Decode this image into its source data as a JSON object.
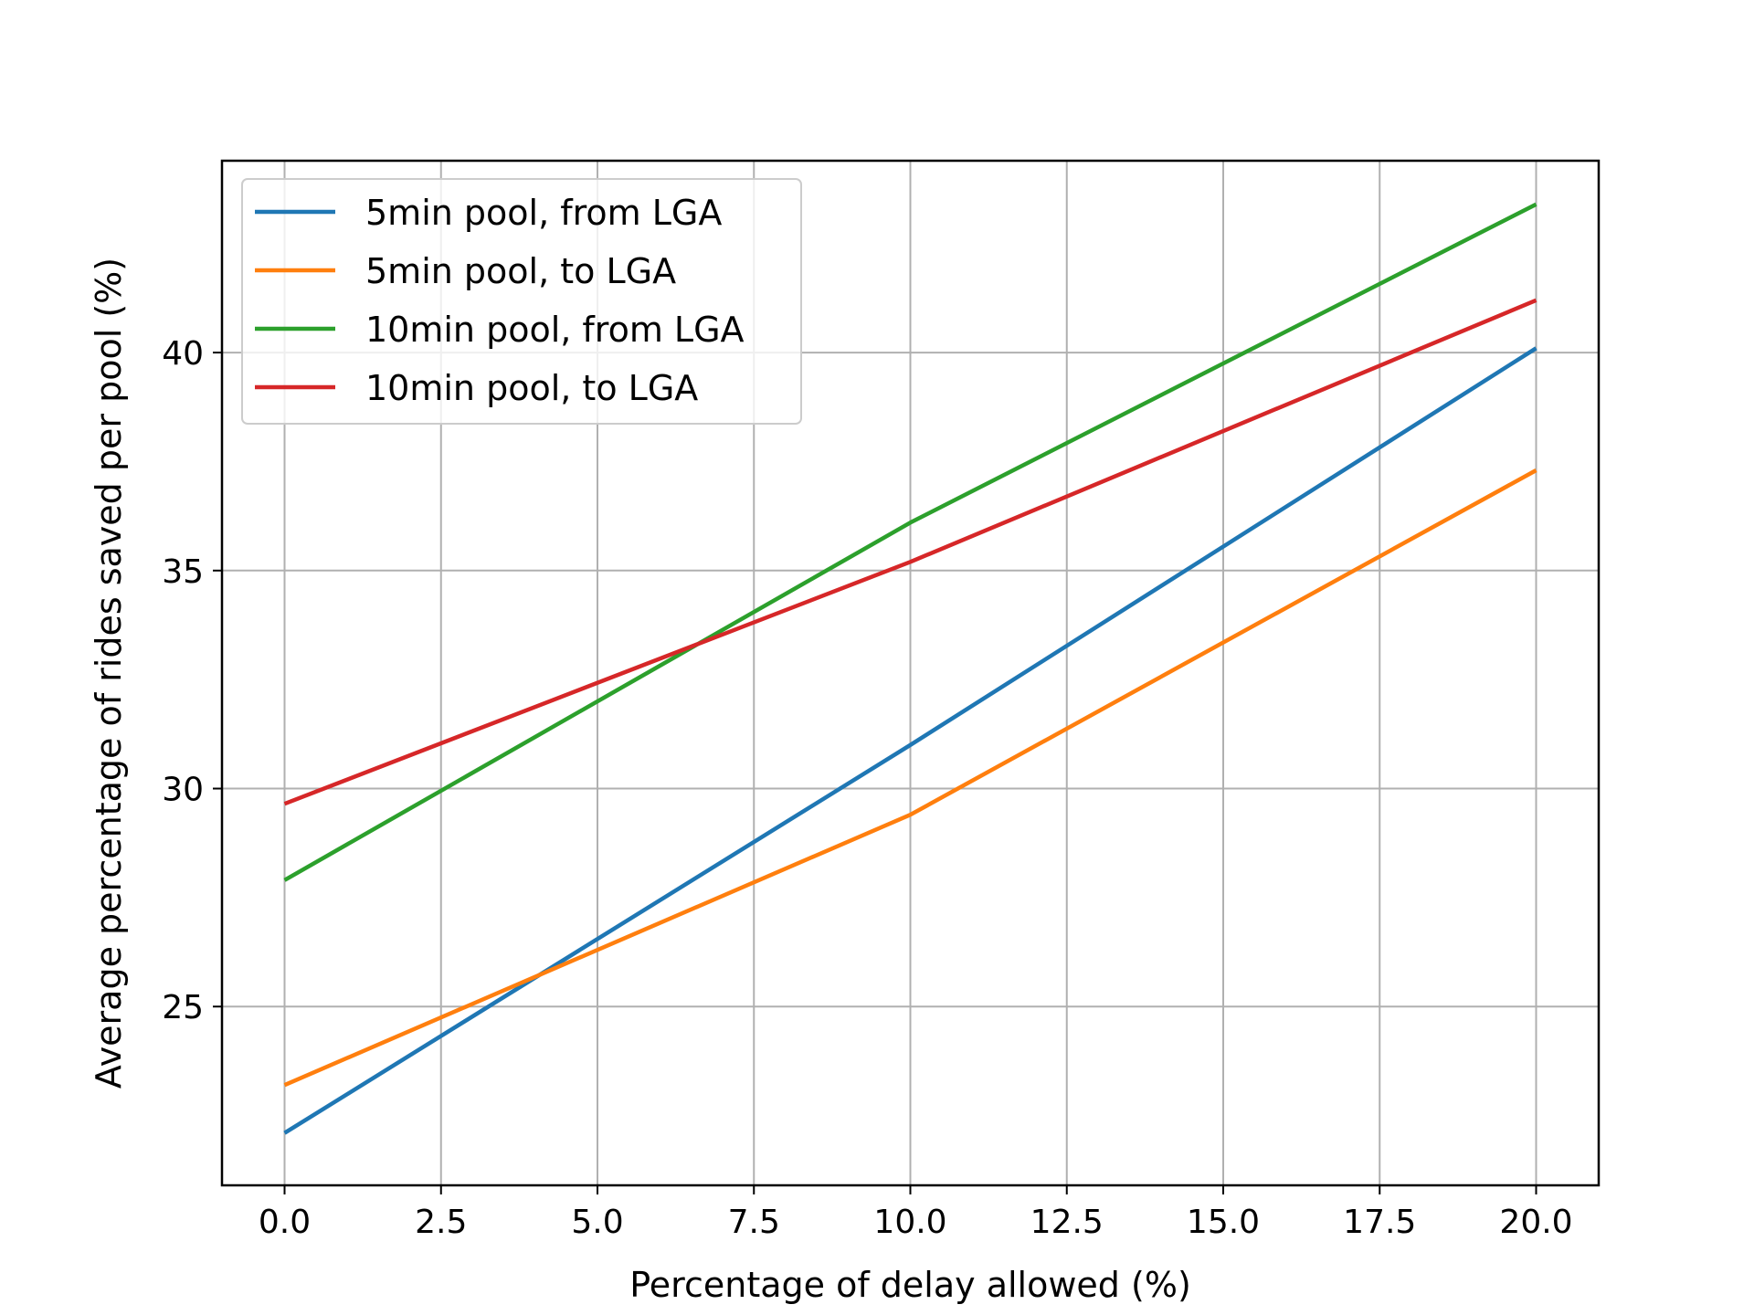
{
  "chart_data": {
    "type": "line",
    "xlabel": "Percentage of delay allowed (%)",
    "ylabel": "Average percentage of rides saved per pool (%)",
    "xlim": [
      -1,
      21
    ],
    "ylim": [
      20.9,
      44.4
    ],
    "xticks": [
      0.0,
      2.5,
      5.0,
      7.5,
      10.0,
      12.5,
      15.0,
      17.5,
      20.0
    ],
    "xtick_labels": [
      "0.0",
      "2.5",
      "5.0",
      "7.5",
      "10.0",
      "12.5",
      "15.0",
      "17.5",
      "20.0"
    ],
    "yticks": [
      25,
      30,
      35,
      40
    ],
    "ytick_labels": [
      "25",
      "30",
      "35",
      "40"
    ],
    "grid": true,
    "legend_position": "upper-left",
    "x": [
      0,
      10,
      20
    ],
    "series": [
      {
        "name": "5min pool, from LGA",
        "color": "#1f77b4",
        "values": [
          22.1,
          31.0,
          40.1
        ]
      },
      {
        "name": "5min pool, to LGA",
        "color": "#ff7f0e",
        "values": [
          23.2,
          29.4,
          37.3
        ]
      },
      {
        "name": "10min pool, from LGA",
        "color": "#2ca02c",
        "values": [
          27.9,
          36.1,
          43.4
        ]
      },
      {
        "name": "10min pool, to LGA",
        "color": "#d62728",
        "values": [
          29.65,
          35.2,
          41.2
        ]
      }
    ]
  }
}
